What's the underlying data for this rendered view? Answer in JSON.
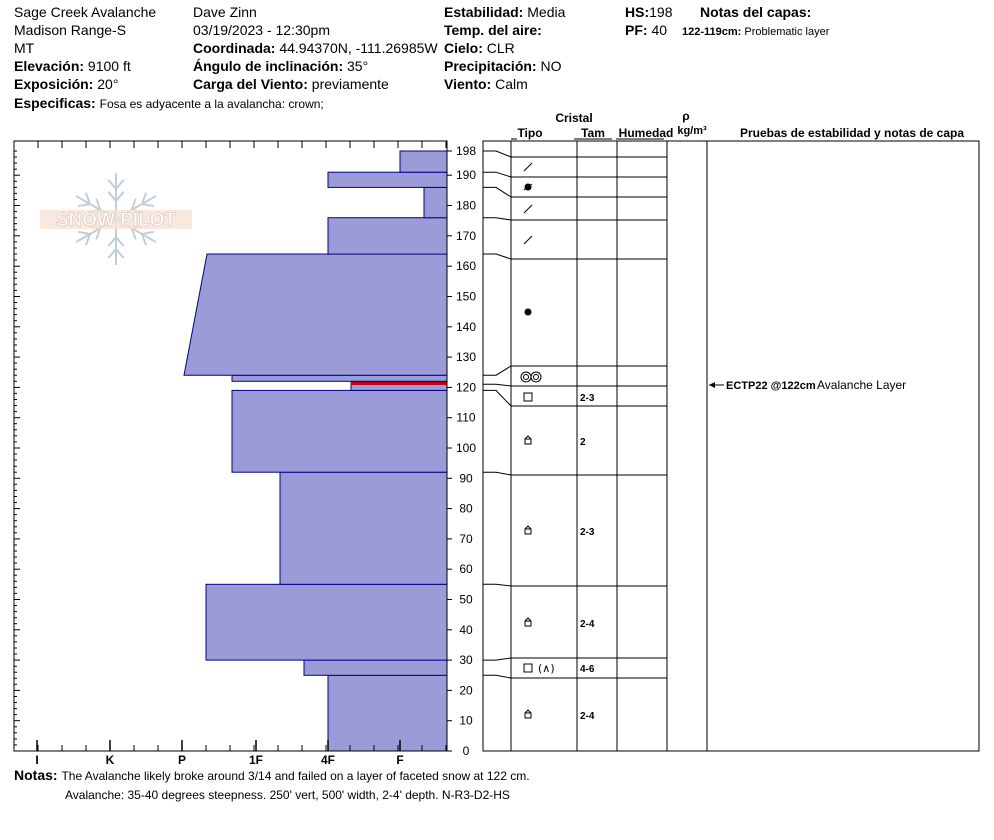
{
  "header": {
    "location": "Sage Creek Avalanche",
    "range": "Madison Range-S",
    "state": "MT",
    "elevation_label": "Elevación:",
    "elevation_value": "9100 ft",
    "exposure_label": "Exposición:",
    "exposure_value": "20°",
    "specifics_label": "Especificas:",
    "specifics_value": "Fosa es adyacente a la avalancha: crown;",
    "observer": "Dave Zinn",
    "datetime": "03/19/2023 - 12:30pm",
    "coord_label": "Coordinada:",
    "coord_value": "44.94370N, -111.26985W",
    "slope_label": "Ángulo de inclinación:",
    "slope_value": "35°",
    "wind_load_label": "Carga del Viento:",
    "wind_load_value": "previamente",
    "stability_label": "Estabilidad:",
    "stability_value": "Media",
    "air_temp_label": "Temp. del aire:",
    "air_temp_value": "",
    "sky_label": "Cielo:",
    "sky_value": "CLR",
    "precip_label": "Precipitación:",
    "precip_value": "NO",
    "wind_label": "Viento:",
    "wind_value": "Calm",
    "hs_label": "HS:",
    "hs_value": "198",
    "pf_label": "PF:",
    "pf_value": "40",
    "layer_notes_label": "Notas del capas:",
    "layer_note_range": "122-119cm:",
    "layer_note_text": "Problematic layer"
  },
  "columns": {
    "cristal": "Cristal",
    "tipo": "Tipo",
    "tam": "Tam",
    "humedad": "Humedad",
    "rho": "ρ",
    "density_unit": "kg/m³",
    "tests": "Pruebas de estabilidad y notas de capa"
  },
  "tests": [
    {
      "depth": 122,
      "result": "ECTP22 @122cm",
      "note": "Avalanche Layer"
    }
  ],
  "notes": {
    "label": "Notas:",
    "line1": "The Avalanche likely broke around 3/14 and failed on a layer of faceted snow at 122 cm.",
    "line2": "Avalanche: 35-40 degrees steepness. 250' vert, 500' width, 2-4' depth. N-R3-D2-HS"
  },
  "logo_text": "SNOW PILOT",
  "chart_data": {
    "type": "bar",
    "title": "",
    "xlabel": "",
    "ylabel": "",
    "hardness_ticks": [
      "I",
      "K",
      "P",
      "1F",
      "4F",
      "F"
    ],
    "height_ticks": [
      0,
      10,
      20,
      30,
      40,
      50,
      60,
      70,
      80,
      90,
      100,
      110,
      120,
      130,
      140,
      150,
      160,
      170,
      180,
      190,
      198
    ],
    "ylim": [
      0,
      198
    ],
    "colors": {
      "fill": "#9b9bd7",
      "edge": "#00008b",
      "problem": "#cc0000"
    },
    "layers": [
      {
        "bottom": 0,
        "top": 25,
        "hardness": "4F",
        "crystal": "facets-rounded",
        "size": "2-4"
      },
      {
        "bottom": 25,
        "top": 30,
        "hardness": "4F-",
        "crystal": "square+crust",
        "size": "4-6"
      },
      {
        "bottom": 30,
        "top": 55,
        "hardness": "P+",
        "crystal": "facets-rounded",
        "size": "2-4"
      },
      {
        "bottom": 55,
        "top": 92,
        "hardness": "1F+",
        "crystal": "facets-rounded",
        "size": "2-3"
      },
      {
        "bottom": 92,
        "top": 119,
        "hardness": "1F-",
        "crystal": "facets-rounded",
        "size": "2"
      },
      {
        "bottom": 119,
        "top": 121,
        "hardness": "F-",
        "crystal": "square",
        "size": "2-3"
      },
      {
        "bottom": 121,
        "top": 122,
        "hardness": "F-",
        "crystal": "square",
        "size": "2-3",
        "problem": true
      },
      {
        "bottom": 122,
        "top": 124,
        "hardness": "4F+",
        "crystal": "melt-forms",
        "size": ""
      },
      {
        "bottom": 124,
        "top": 164,
        "hardness": "P-/1F+",
        "crystal": "rounds",
        "size": ""
      },
      {
        "bottom": 164,
        "top": 176,
        "hardness": "4F",
        "crystal": "decomposing",
        "size": ""
      },
      {
        "bottom": 176,
        "top": 186,
        "hardness": "F+",
        "crystal": "decomposing",
        "size": ""
      },
      {
        "bottom": 186,
        "top": 191,
        "hardness": "4F",
        "crystal": "graupel",
        "size": ""
      },
      {
        "bottom": 191,
        "top": 198,
        "hardness": "F",
        "crystal": "decomposing",
        "size": ""
      }
    ]
  }
}
